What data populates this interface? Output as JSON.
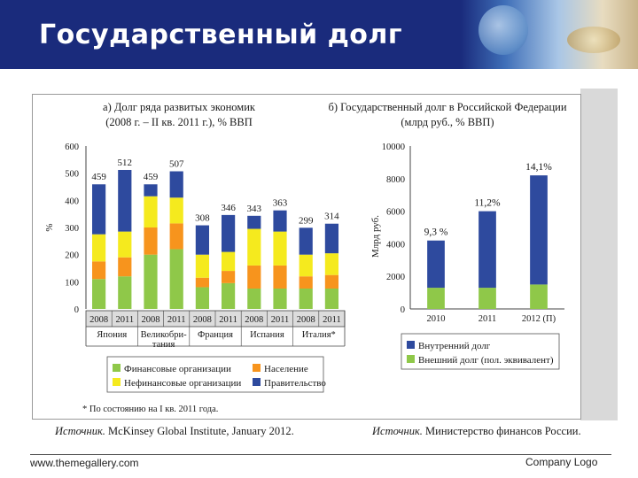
{
  "title": "Государственный долг",
  "footer": {
    "left": "www.themegallery.com",
    "right": "Company Logo"
  },
  "sources": {
    "left_label": "Источник.",
    "left_text": "McKinsey Global Institute, January 2012.",
    "right_label": "Источник.",
    "right_text": "Министерство финансов России."
  },
  "chart_data": [
    {
      "type": "bar",
      "stacked": true,
      "title_lines": [
        "а) Долг ряда развитых экономик",
        "(2008 г. – II кв. 2011 г.), % ВВП"
      ],
      "ylabel": "%",
      "ylim": [
        0,
        600
      ],
      "yticks": [
        0,
        100,
        200,
        300,
        400,
        500,
        600
      ],
      "categories": [
        "2008",
        "2011",
        "2008",
        "2011",
        "2008",
        "2011",
        "2008",
        "2011",
        "2008",
        "2011"
      ],
      "groups": [
        {
          "name": "Япония",
          "lines": [
            "Япония"
          ]
        },
        {
          "name": "Великобритания",
          "lines": [
            "Великобри-",
            "тания"
          ]
        },
        {
          "name": "Франция",
          "lines": [
            "Франция"
          ]
        },
        {
          "name": "Испания",
          "lines": [
            "Испания"
          ]
        },
        {
          "name": "Италия*",
          "lines": [
            "Италия*"
          ]
        }
      ],
      "totals": [
        "459",
        "512",
        "459",
        "507",
        "308",
        "346",
        "343",
        "363",
        "299",
        "314"
      ],
      "series": [
        {
          "name": "Финансовые организации",
          "color": "#8fc849",
          "values": [
            110,
            120,
            200,
            220,
            80,
            95,
            75,
            75,
            75,
            75
          ]
        },
        {
          "name": "Население",
          "color": "#f7941d",
          "values": [
            65,
            70,
            100,
            95,
            35,
            45,
            85,
            85,
            45,
            50
          ]
        },
        {
          "name": "Нефинансовые организации",
          "color": "#f5ea1e",
          "values": [
            100,
            95,
            115,
            95,
            85,
            70,
            135,
            125,
            80,
            80
          ]
        },
        {
          "name": "Правительство",
          "color": "#2e4a9e",
          "values": [
            184,
            227,
            44,
            97,
            108,
            136,
            48,
            78,
            99,
            109
          ]
        }
      ],
      "legend": [
        [
          "Финансовые организации",
          "Население"
        ],
        [
          "Нефинансовые организации",
          "Правительство"
        ]
      ],
      "footnote": "* По состоянию на I кв. 2011 года."
    },
    {
      "type": "bar",
      "stacked": true,
      "title_lines": [
        "б) Государственный долг в Российской Федерации",
        "(млрд руб., % ВВП)"
      ],
      "ylabel": "Млрд руб.",
      "ylim": [
        0,
        10000
      ],
      "yticks": [
        0,
        2000,
        4000,
        6000,
        8000,
        10000
      ],
      "categories": [
        "2010",
        "2011",
        "2012 (П)"
      ],
      "annotations": [
        "9,3 %",
        "11,2%",
        "14,1%"
      ],
      "series": [
        {
          "name": "Внешний долг (пол. эквивалент)",
          "color": "#8fc849",
          "values": [
            1300,
            1300,
            1500
          ]
        },
        {
          "name": "Внутренний долг",
          "color": "#2e4a9e",
          "values": [
            2900,
            4700,
            6700
          ]
        }
      ],
      "legend": [
        "Внутренний долг",
        "Внешний долг (пол. эквивалент)"
      ]
    }
  ]
}
